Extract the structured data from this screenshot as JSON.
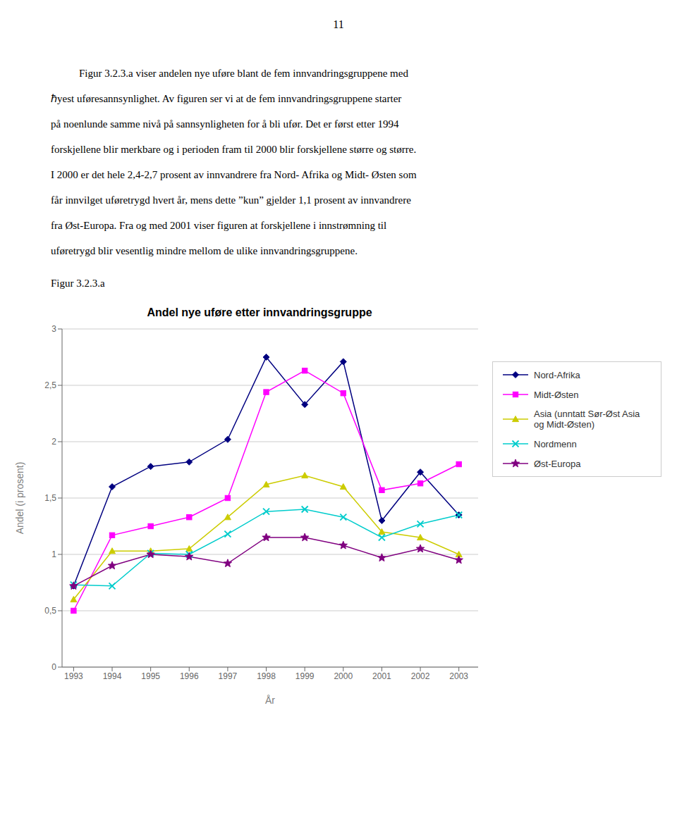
{
  "chart_data": {
    "type": "line",
    "title": "Andel nye uføre etter innvandringsgruppe",
    "x_label": "År",
    "y_label": "Andel (i prosent)",
    "annotations": [
      "11",
      "Figur 3.2.3.a viser andelen nye uføre blant de fem innvandringsgruppene med",
      "ℏyest uføresannsynlighet. Av figuren ser vi at de fem innvandringsgruppene starter",
      "på noenlunde samme nivå på sannsynligheten for å bli ufør. Det er først etter 1994",
      "forskjellene blir merkbare og i perioden fram til 2000 blir forskjellene større og større.",
      "I 2000 er det hele 2,4-2,7 prosent av innvandrere fra Nord- Afrika og Midt- Østen som",
      "får innvilget uføretrygd hvert år, mens dette ”kun” gjelder 1,1 prosent av innvandrere",
      "fra Øst-Europa. Fra og med 2001 viser figuren at forskjellene i innstrømning til",
      "uføretrygd blir vesentlig mindre mellom de ulike innvandringsgruppene.",
      "Figur 3.2.3.a"
    ],
    "x": [
      1993,
      1994,
      1995,
      1996,
      1997,
      1998,
      1999,
      2000,
      2001,
      2002,
      2003
    ],
    "xlim": [
      1992.7,
      2003.5
    ],
    "xticks": [
      1993,
      1994,
      1995,
      1996,
      1997,
      1998,
      1999,
      2000,
      2001,
      2002,
      2003
    ],
    "ylim": [
      0,
      3
    ],
    "yticks": [
      0,
      {
        "value": 0.5,
        "label": "0,5"
      },
      1,
      {
        "value": 1.5,
        "label": "1,5"
      },
      2,
      {
        "value": 2.5,
        "label": "2,5"
      },
      3
    ],
    "grid": true,
    "legend": "right",
    "series": [
      {
        "name": "Nord-Afrika",
        "color": "#000080",
        "marker": "diamond",
        "values": [
          0.72,
          1.6,
          1.78,
          1.82,
          2.02,
          2.75,
          2.33,
          2.71,
          1.3,
          1.73,
          1.35
        ]
      },
      {
        "name": "Midt-Østen",
        "color": "#FF00FF",
        "marker": "square",
        "values": [
          0.5,
          1.17,
          1.25,
          1.33,
          1.5,
          2.44,
          2.63,
          2.43,
          1.57,
          1.63,
          1.8
        ]
      },
      {
        "name": "Asia (unntatt Sør-Øst Asia\nog Midt-Østen)",
        "color": "#CCCC00",
        "marker": "triangle",
        "values": [
          0.6,
          1.03,
          1.03,
          1.05,
          1.33,
          1.62,
          1.7,
          1.6,
          1.2,
          1.15,
          1.0
        ]
      },
      {
        "name": "Nordmenn",
        "color": "#00CCCC",
        "marker": "x",
        "values": [
          0.73,
          0.72,
          1.01,
          1.0,
          1.18,
          1.38,
          1.4,
          1.33,
          1.15,
          1.27,
          1.35
        ]
      },
      {
        "name": "Øst-Europa",
        "color": "#800080",
        "marker": "star",
        "values": [
          0.72,
          0.9,
          1.0,
          0.98,
          0.92,
          1.15,
          1.15,
          1.08,
          0.97,
          1.05,
          0.95
        ]
      }
    ]
  }
}
